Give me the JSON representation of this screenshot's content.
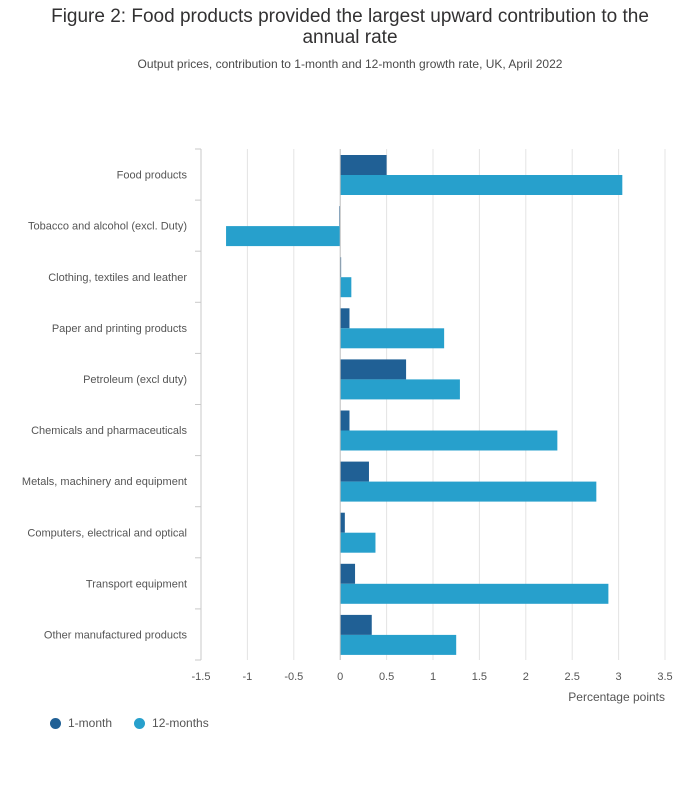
{
  "title": "Figure 2: Food products provided the largest upward contribution to the annual rate",
  "subtitle": "Output prices, contribution to 1-month and 12-month growth rate, UK, April 2022",
  "colors": {
    "one_month": "#206095",
    "twelve_months": "#27a0cc",
    "grid": "#e4e4e4",
    "axis": "#c9c9c9",
    "text": "#555555"
  },
  "chart_data": {
    "type": "bar",
    "orientation": "horizontal",
    "categories": [
      "Food products",
      "Tobacco and alcohol (excl. Duty)",
      "Clothing, textiles and leather",
      "Paper and printing products",
      "Petroleum (excl duty)",
      "Chemicals and pharmaceuticals",
      "Metals, machinery and equipment",
      "Computers, electrical and optical",
      "Transport equipment",
      "Other manufactured products"
    ],
    "series": [
      {
        "name": "1-month",
        "values": [
          0.5,
          -0.01,
          0.01,
          0.1,
          0.71,
          0.1,
          0.31,
          0.05,
          0.16,
          0.34
        ]
      },
      {
        "name": "12-months",
        "values": [
          3.04,
          -1.23,
          0.12,
          1.12,
          1.29,
          2.34,
          2.76,
          0.38,
          2.89,
          1.25
        ]
      }
    ],
    "xlabel": "Percentage points",
    "ylabel": "",
    "xlim": [
      -1.5,
      3.5
    ],
    "xticks": [
      "-1.5",
      "-1",
      "-0.5",
      "0",
      "0.5",
      "1",
      "1.5",
      "2",
      "2.5",
      "3",
      "3.5"
    ],
    "grid": true,
    "legend_position": "bottom-left"
  }
}
